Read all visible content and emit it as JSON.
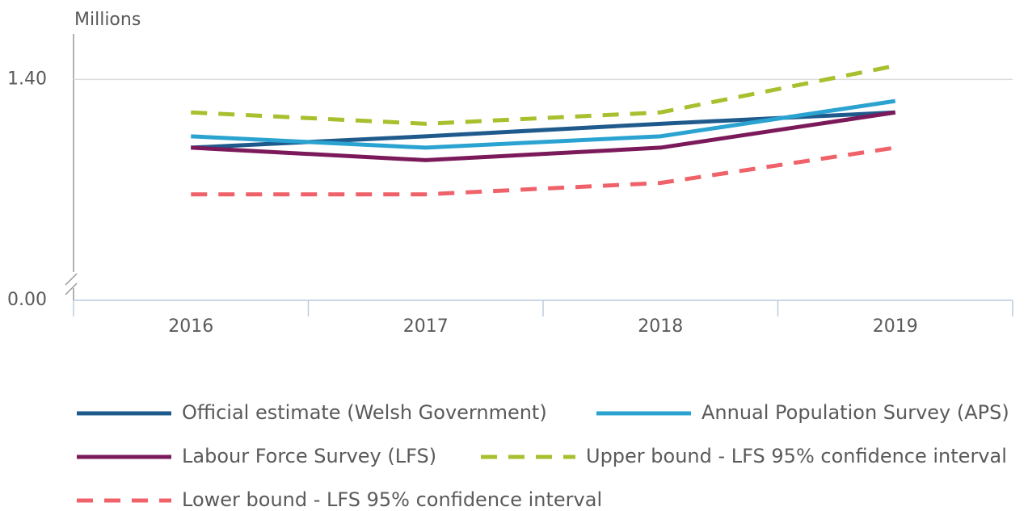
{
  "chart_data": {
    "type": "line",
    "y_label": "Millions",
    "categories": [
      "2016",
      "2017",
      "2018",
      "2019"
    ],
    "ylim": [
      0,
      1.44
    ],
    "yticks": [
      {
        "value": 0,
        "label": "0.00"
      },
      {
        "value": 1.4,
        "label": "1.40"
      }
    ],
    "y_break": [
      0,
      1.225
    ],
    "grid": true,
    "series": [
      {
        "name": "Official estimate (Welsh Government)",
        "color": "#1f5a8c",
        "dashed": false,
        "values": [
          1.34,
          1.35,
          1.361,
          1.371
        ]
      },
      {
        "name": "Annual Population Survey (APS)",
        "color": "#2aa3d1",
        "dashed": false,
        "values": [
          1.35,
          1.34,
          1.35,
          1.381
        ]
      },
      {
        "name": "Labour Force Survey (LFS)",
        "color": "#7b1a5a",
        "dashed": false,
        "values": [
          1.34,
          1.329,
          1.34,
          1.371
        ]
      },
      {
        "name": "Upper bound - LFS 95% confidence interval",
        "color": "#a8bf2e",
        "dashed": true,
        "values": [
          1.371,
          1.361,
          1.371,
          1.412
        ]
      },
      {
        "name": "Lower bound - LFS 95% confidence interval",
        "color": "#f0626a",
        "dashed": true,
        "values": [
          1.299,
          1.299,
          1.309,
          1.34
        ]
      }
    ]
  }
}
